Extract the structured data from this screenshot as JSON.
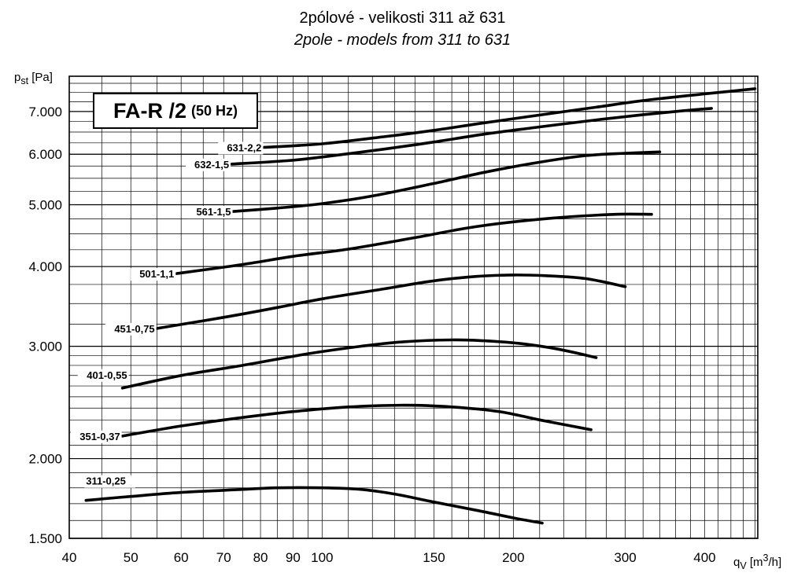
{
  "title": "2pólové - velikosti 311 až 631",
  "subtitle": "2pole - models from 311 to 631",
  "model_box": {
    "main": "FA-R /2",
    "frequency": "(50 Hz)"
  },
  "axis_text": {
    "y_symbol": "p",
    "y_subscript": "st",
    "y_unit": "[Pa]",
    "x_symbol": "q",
    "x_subscript": "V",
    "x_unit_prefix": "[m",
    "x_unit_exp": "3",
    "x_unit_suffix": "/h]"
  },
  "chart_data": {
    "type": "line",
    "title": "2pólové - velikosti 311 až 631",
    "subtitle": "2pole - models from 311 to 631",
    "xlabel": "qV [m3/h]",
    "ylabel": "pst [Pa]",
    "xscale": "log",
    "yscale": "log",
    "xlim": [
      40,
      485
    ],
    "ylim": [
      1500,
      7950
    ],
    "x_ticks": [
      40,
      50,
      60,
      70,
      80,
      90,
      100,
      150,
      200,
      300,
      400
    ],
    "x_tick_labels": [
      "40",
      "50",
      "60",
      "70",
      "80",
      "90",
      "100",
      "150",
      "200",
      "300",
      "400"
    ],
    "y_ticks": [
      1500,
      2000,
      3000,
      4000,
      5000,
      6000,
      7000
    ],
    "y_tick_labels": [
      "1.500",
      "2.000",
      "3.000",
      "4.000",
      "5.000",
      "6.000",
      "7.000"
    ],
    "grid": true,
    "series": [
      {
        "name": "311-0,25",
        "x": [
          42.5,
          50,
          60,
          75,
          85,
          100,
          115,
          130,
          150,
          175,
          200,
          222
        ],
        "y": [
          1720,
          1745,
          1770,
          1790,
          1800,
          1800,
          1790,
          1760,
          1710,
          1660,
          1615,
          1585
        ]
      },
      {
        "name": "351-0,37",
        "x": [
          48.5,
          60,
          75,
          90,
          110,
          135,
          160,
          190,
          220,
          265
        ],
        "y": [
          2170,
          2250,
          2320,
          2370,
          2410,
          2425,
          2410,
          2370,
          2300,
          2220
        ]
      },
      {
        "name": "401-0,55",
        "x": [
          48.5,
          60,
          75,
          95,
          115,
          135,
          160,
          180,
          205,
          235,
          270
        ],
        "y": [
          2580,
          2700,
          2800,
          2920,
          3000,
          3050,
          3070,
          3060,
          3030,
          2970,
          2880
        ]
      },
      {
        "name": "451-0,75",
        "x": [
          55,
          70,
          85,
          100,
          125,
          150,
          175,
          200,
          225,
          260,
          300
        ],
        "y": [
          3200,
          3330,
          3450,
          3560,
          3690,
          3800,
          3860,
          3880,
          3870,
          3830,
          3720
        ]
      },
      {
        "name": "501-1,1",
        "x": [
          59,
          75,
          90,
          110,
          140,
          170,
          200,
          240,
          290,
          330
        ],
        "y": [
          3900,
          4030,
          4150,
          4260,
          4440,
          4600,
          4700,
          4780,
          4830,
          4830
        ]
      },
      {
        "name": "561-1,5",
        "x": [
          72.5,
          85,
          100,
          120,
          150,
          180,
          220,
          260,
          300,
          340
        ],
        "y": [
          4880,
          4940,
          5020,
          5160,
          5400,
          5620,
          5830,
          5970,
          6020,
          6050
        ]
      },
      {
        "name": "632-1,5",
        "x": [
          72,
          88,
          100,
          125,
          150,
          180,
          220,
          270,
          320,
          370,
          410
        ],
        "y": [
          5790,
          5860,
          5940,
          6110,
          6270,
          6450,
          6620,
          6790,
          6920,
          7020,
          7080
        ]
      },
      {
        "name": "631-2,2",
        "x": [
          81,
          100,
          125,
          150,
          180,
          220,
          270,
          320,
          380,
          440,
          480
        ],
        "y": [
          6150,
          6230,
          6390,
          6540,
          6720,
          6910,
          7110,
          7280,
          7420,
          7530,
          7600
        ]
      }
    ]
  }
}
